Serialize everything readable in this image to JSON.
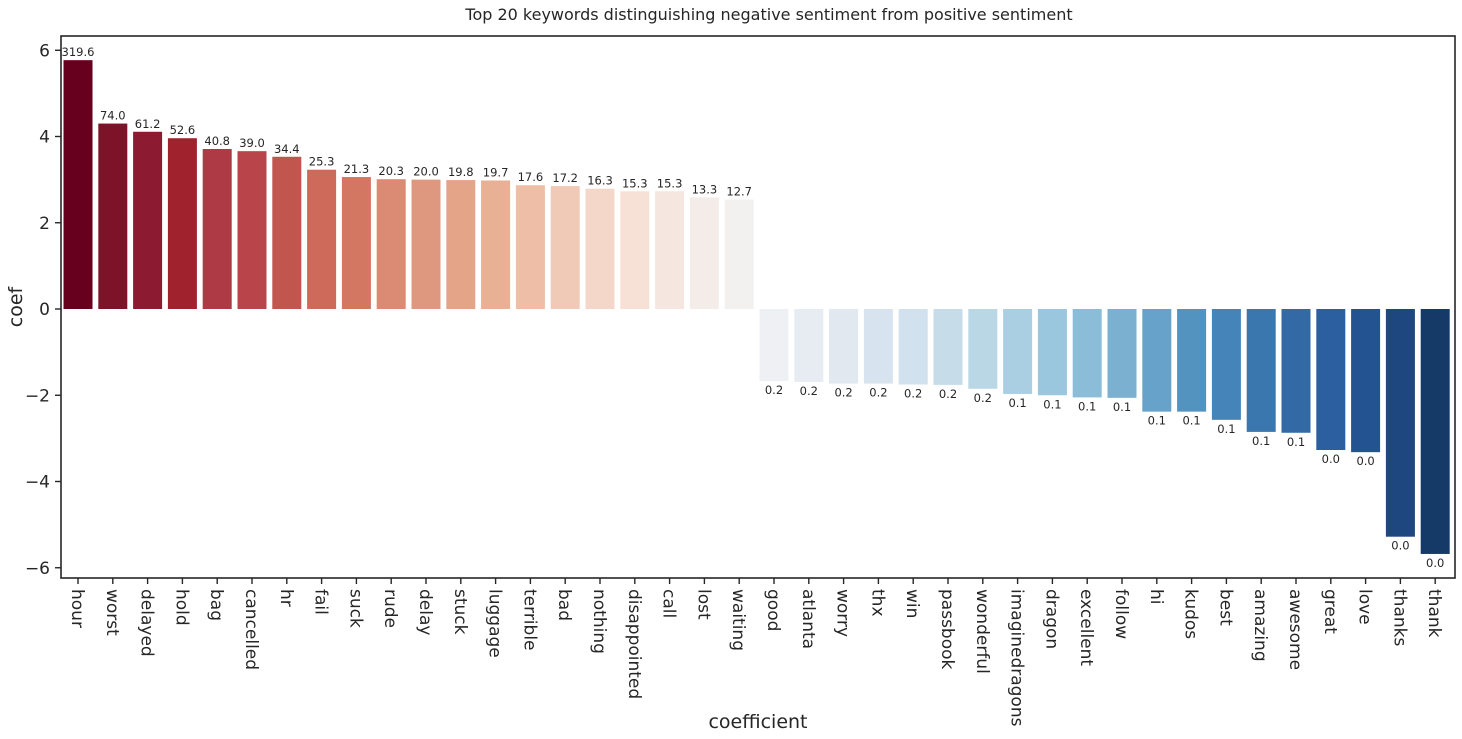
{
  "chart_data": {
    "type": "bar",
    "title": "Top 20 keywords distinguishing negative sentiment from positive sentiment",
    "xlabel": "coefficient",
    "ylabel": "coef",
    "ylim": [
      -6.2,
      6.3
    ],
    "yticks": [
      -6,
      -4,
      -2,
      0,
      2,
      4,
      6
    ],
    "ytick_labels": [
      "−6",
      "−4",
      "−2",
      "0",
      "2",
      "4",
      "6"
    ],
    "grid": false,
    "categories": [
      "hour",
      "worst",
      "delayed",
      "hold",
      "bag",
      "cancelled",
      "hr",
      "fail",
      "suck",
      "rude",
      "delay",
      "stuck",
      "luggage",
      "terrible",
      "bad",
      "nothing",
      "disappointed",
      "call",
      "lost",
      "waiting",
      "good",
      "atlanta",
      "worry",
      "thx",
      "win",
      "passbook",
      "wonderful",
      "imaginedragons",
      "dragon",
      "excellent",
      "follow",
      "hi",
      "kudos",
      "best",
      "amazing",
      "awesome",
      "great",
      "love",
      "thanks",
      "thank"
    ],
    "values": [
      5.77,
      4.3,
      4.11,
      3.96,
      3.71,
      3.66,
      3.53,
      3.23,
      3.06,
      3.01,
      3.0,
      2.99,
      2.98,
      2.87,
      2.85,
      2.79,
      2.73,
      2.73,
      2.59,
      2.54,
      -1.67,
      -1.69,
      -1.73,
      -1.73,
      -1.75,
      -1.76,
      -1.85,
      -1.97,
      -2.0,
      -2.05,
      -2.06,
      -2.38,
      -2.38,
      -2.57,
      -2.85,
      -2.87,
      -3.27,
      -3.32,
      -5.28,
      -5.68
    ],
    "bar_labels": [
      "319.6",
      "74.0",
      "61.2",
      "52.6",
      "40.8",
      "39.0",
      "34.4",
      "25.3",
      "21.3",
      "20.3",
      "20.0",
      "19.8",
      "19.7",
      "17.6",
      "17.2",
      "16.3",
      "15.3",
      "15.3",
      "13.3",
      "12.7",
      "0.2",
      "0.2",
      "0.2",
      "0.2",
      "0.2",
      "0.2",
      "0.2",
      "0.1",
      "0.1",
      "0.1",
      "0.1",
      "0.1",
      "0.1",
      "0.1",
      "0.1",
      "0.1",
      "0.0",
      "0.0",
      "0.0",
      "0.0"
    ],
    "colors": [
      "#67001f",
      "#7c1329",
      "#8c1b31",
      "#a0222d",
      "#ae3a45",
      "#b9444a",
      "#c0564e",
      "#cd6a5a",
      "#d37763",
      "#db8a73",
      "#dd987f",
      "#e3a488",
      "#e8b094",
      "#eebfa6",
      "#f1cab7",
      "#f4d7c8",
      "#f7e1d6",
      "#f6e6e0",
      "#f4ece8",
      "#f3f1ef",
      "#eef0f3",
      "#e6ecf2",
      "#e1e8f0",
      "#d7e4ef",
      "#d1e2ee",
      "#c6dce9",
      "#bad7e6",
      "#abcfe2",
      "#9bc7de",
      "#8cbdd8",
      "#7bb0d1",
      "#66a2c9",
      "#5393c0",
      "#4484b8",
      "#3977ae",
      "#336aa6",
      "#2c5f9f",
      "#245392",
      "#1e467f",
      "#163a67"
    ]
  }
}
